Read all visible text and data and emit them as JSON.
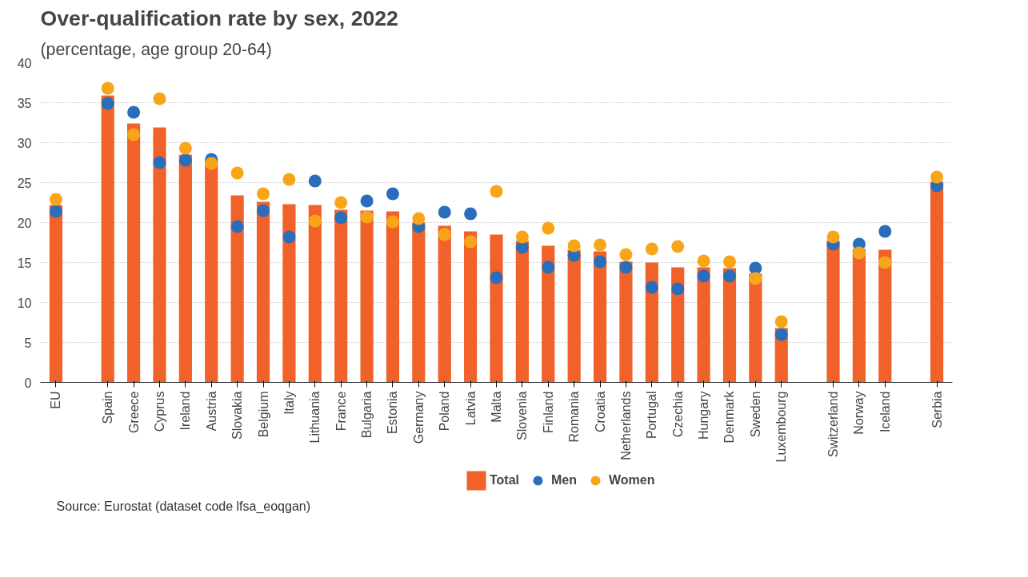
{
  "chart_data": {
    "type": "bar",
    "title": "Over-qualification rate by sex, 2022",
    "subtitle": "(percentage, age group 20-64)",
    "categories": [
      "EU",
      null,
      "Spain",
      "Greece",
      "Cyprus",
      "Ireland",
      "Austria",
      "Slovakia",
      "Belgium",
      "Italy",
      "Lithuania",
      "France",
      "Bulgaria",
      "Estonia",
      "Germany",
      "Poland",
      "Latvia",
      "Malta",
      "Slovenia",
      "Finland",
      "Romania",
      "Croatia",
      "Netherlands",
      "Portugal",
      "Czechia",
      "Hungary",
      "Denmark",
      "Sweden",
      "Luxembourg",
      null,
      "Switzerland",
      "Norway",
      "Iceland",
      null,
      "Serbia"
    ],
    "series": [
      {
        "name": "Total",
        "type": "bar",
        "color": "#f0622a",
        "values": [
          22.2,
          null,
          35.9,
          32.4,
          31.9,
          28.5,
          27.8,
          23.4,
          22.6,
          22.3,
          22.2,
          21.6,
          21.5,
          21.4,
          20.0,
          19.6,
          18.9,
          18.5,
          17.7,
          17.1,
          16.6,
          16.4,
          15.1,
          15.0,
          14.4,
          14.4,
          14.3,
          13.6,
          6.8,
          null,
          17.7,
          16.7,
          16.6,
          null,
          25.1
        ]
      },
      {
        "name": "Men",
        "type": "scatter",
        "color": "#2a6ebb",
        "values": [
          21.4,
          null,
          34.9,
          33.8,
          27.5,
          27.8,
          27.9,
          19.5,
          21.5,
          18.2,
          25.2,
          20.6,
          22.7,
          23.6,
          19.5,
          21.3,
          21.1,
          13.1,
          16.9,
          14.4,
          15.9,
          15.1,
          14.4,
          11.9,
          11.7,
          13.3,
          13.3,
          14.3,
          6.0,
          null,
          17.3,
          17.3,
          18.9,
          null,
          24.6
        ]
      },
      {
        "name": "Women",
        "type": "scatter",
        "color": "#f9a51a",
        "values": [
          22.9,
          null,
          36.8,
          31.0,
          35.5,
          29.3,
          27.4,
          26.2,
          23.6,
          25.4,
          20.2,
          22.5,
          20.7,
          20.1,
          20.5,
          18.5,
          17.6,
          23.9,
          18.2,
          19.3,
          17.1,
          17.2,
          16.0,
          16.7,
          17.0,
          15.2,
          15.1,
          13.0,
          7.6,
          null,
          18.2,
          16.2,
          15.0,
          null,
          25.7
        ]
      }
    ],
    "ylim": [
      0,
      40
    ],
    "yticks": [
      0,
      5,
      10,
      15,
      20,
      25,
      30,
      35,
      40
    ],
    "grid": "y",
    "legend": "bottom",
    "marker": "circle",
    "annotations": [
      "Source: Eurostat (dataset code lfsa_eoqgan)"
    ]
  }
}
